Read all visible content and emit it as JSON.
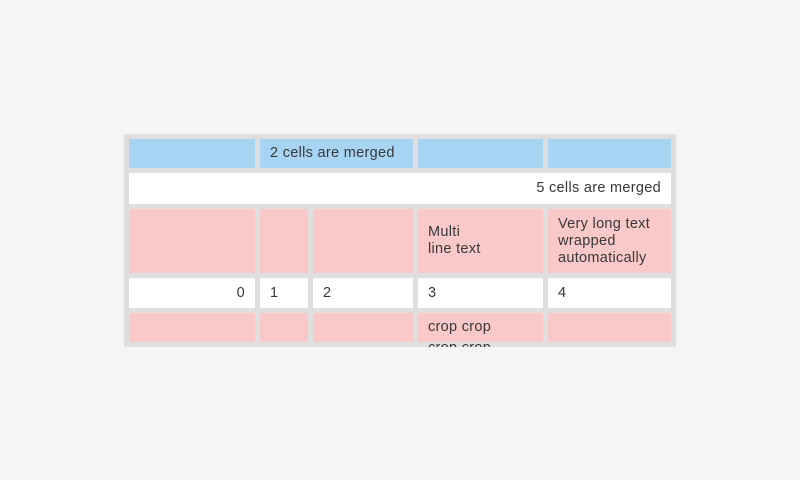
{
  "window": {
    "background": "#f4f5f5"
  },
  "table": {
    "background": "#dfdfdf",
    "colors": {
      "blue": "#a8d4f4",
      "pink": "#f9c8c8",
      "white": "#ffffff",
      "text": "#383838"
    },
    "rows": [
      {
        "style": "blue",
        "cells": [
          {
            "text": ""
          },
          {
            "text": "2 cells are merged",
            "span": 2,
            "align": "left"
          },
          {
            "text": ""
          },
          {
            "text": ""
          }
        ]
      },
      {
        "style": "white",
        "cells": [
          {
            "text": "5 cells are merged",
            "span": 5,
            "align": "right"
          }
        ]
      },
      {
        "style": "pink",
        "cells": [
          {
            "text": ""
          },
          {
            "text": ""
          },
          {
            "text": ""
          },
          {
            "text": "Multi\nline text"
          },
          {
            "text": "Very long text wrapped automatically"
          }
        ]
      },
      {
        "style": "white",
        "cells": [
          {
            "text": "0",
            "align": "right"
          },
          {
            "text": "1"
          },
          {
            "text": "2"
          },
          {
            "text": "3"
          },
          {
            "text": "4"
          }
        ]
      },
      {
        "style": "pink",
        "cells": [
          {
            "text": ""
          },
          {
            "text": ""
          },
          {
            "text": ""
          },
          {
            "text": "crop crop crop crop",
            "cropped": true
          },
          {
            "text": ""
          }
        ]
      }
    ]
  }
}
